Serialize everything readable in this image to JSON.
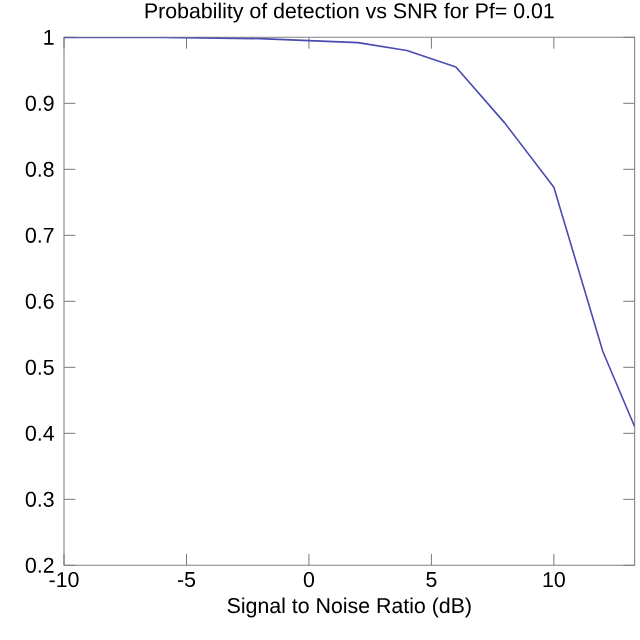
{
  "chart_data": {
    "type": "line",
    "title": "Probability of detection vs SNR for Pf= 0.01",
    "xlabel": "Signal to Noise Ratio (dB)",
    "x": [
      -10,
      -8,
      -6,
      -4,
      -2,
      0,
      2,
      4,
      6,
      8,
      10,
      12,
      13.3
    ],
    "series": [
      {
        "color": "#4a4ab0",
        "values": [
          1.0,
          1.0,
          1.0,
          0.999,
          0.998,
          0.995,
          0.992,
          0.98,
          0.955,
          0.87,
          0.773,
          0.524,
          0.41
        ]
      }
    ],
    "xlim": [
      -10,
      13.3
    ],
    "ylim": [
      0.2,
      1
    ],
    "xticks": [
      -10,
      -5,
      0,
      5,
      10
    ],
    "yticks": [
      {
        "value": 0.2,
        "label": "0.2"
      },
      {
        "value": 0.3,
        "label": "0.3"
      },
      {
        "value": 0.4,
        "label": "0.4"
      },
      {
        "value": 0.5,
        "label": "0.5"
      },
      {
        "value": 0.6,
        "label": "0.6"
      },
      {
        "value": 0.7,
        "label": "0.7"
      },
      {
        "value": 0.8,
        "label": "0.8"
      },
      {
        "value": 0.9,
        "label": "0.9"
      },
      {
        "value": 1,
        "label": "1"
      }
    ],
    "marker": "none",
    "line_style": "solid"
  }
}
